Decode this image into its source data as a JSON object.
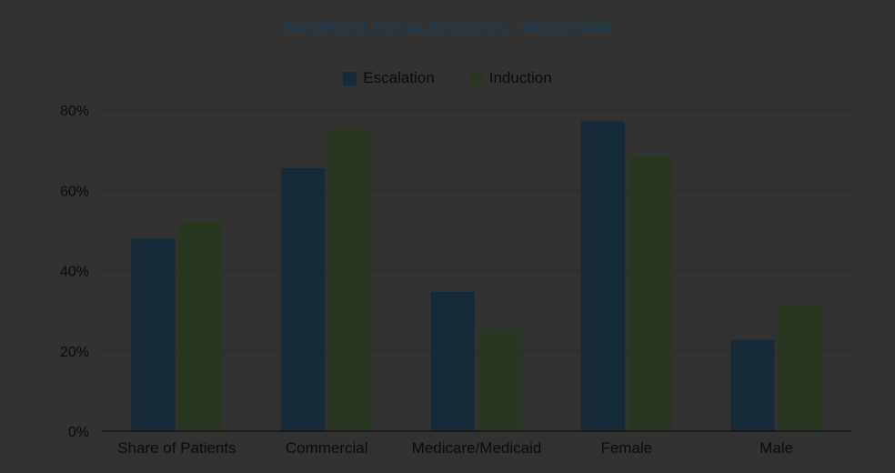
{
  "chart_data": {
    "type": "bar",
    "title": "PATIENTS: ESCALATION VS. INDUCTION",
    "categories": [
      "Share of Patients",
      "Commercial",
      "Medicare/Medicaid",
      "Female",
      "Male"
    ],
    "series": [
      {
        "name": "Escalation",
        "values": [
          48,
          65.5,
          34.7,
          77.2,
          22.7
        ],
        "color": "#162a38"
      },
      {
        "name": "Induction",
        "values": [
          52,
          75.3,
          25.3,
          68.4,
          31.3
        ],
        "color": "#293621"
      }
    ],
    "yticks": [
      "0%",
      "20%",
      "40%",
      "60%",
      "80%"
    ],
    "ylim": [
      0,
      80
    ],
    "grid": true,
    "legend_position": "top-center",
    "colors": {
      "background": "#323232",
      "title": "#1f3a4e",
      "gridline": "#2b2b2b",
      "axis": "#141414",
      "text": "#0c0c0c"
    }
  }
}
